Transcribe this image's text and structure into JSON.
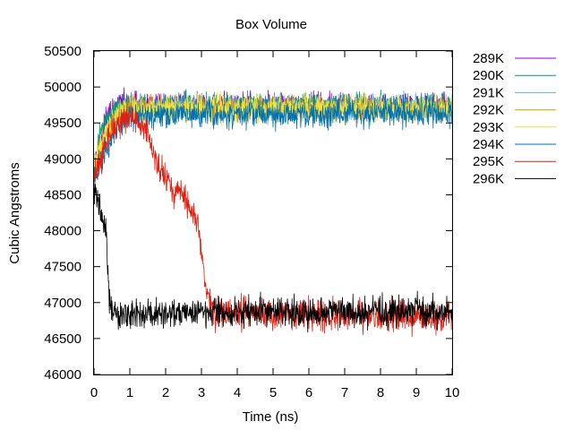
{
  "chart_data": {
    "type": "line",
    "title": "Box Volume",
    "xlabel": "Time (ns)",
    "ylabel": "Cubic Angstroms",
    "xlim": [
      0,
      10
    ],
    "ylim": [
      46000,
      50500
    ],
    "xticks": [
      "0",
      "1",
      "2",
      "3",
      "4",
      "5",
      "6",
      "7",
      "8",
      "9",
      "10"
    ],
    "yticks": [
      "46000",
      "46500",
      "47000",
      "47500",
      "48000",
      "48500",
      "49000",
      "49500",
      "50000",
      "50500"
    ],
    "grid": false,
    "legend_position": "right, outside plot",
    "series": [
      {
        "name": "289K",
        "color": "#9400d3",
        "noise": 160,
        "points": [
          [
            0,
            48900
          ],
          [
            0.2,
            49300
          ],
          [
            0.4,
            49600
          ],
          [
            0.7,
            49750
          ],
          [
            1.0,
            49750
          ],
          [
            10,
            49750
          ]
        ]
      },
      {
        "name": "290K",
        "color": "#009e73",
        "noise": 150,
        "points": [
          [
            0,
            49000
          ],
          [
            0.2,
            49400
          ],
          [
            0.5,
            49650
          ],
          [
            0.8,
            49750
          ],
          [
            10,
            49750
          ]
        ]
      },
      {
        "name": "291K",
        "color": "#56b4e9",
        "noise": 160,
        "points": [
          [
            0,
            48900
          ],
          [
            0.3,
            49300
          ],
          [
            0.7,
            49600
          ],
          [
            1.0,
            49700
          ],
          [
            10,
            49700
          ]
        ]
      },
      {
        "name": "292K",
        "color": "#e69f00",
        "noise": 160,
        "points": [
          [
            0,
            48800
          ],
          [
            0.3,
            49300
          ],
          [
            0.7,
            49650
          ],
          [
            1.0,
            49700
          ],
          [
            10,
            49700
          ]
        ]
      },
      {
        "name": "293K",
        "color": "#f0e442",
        "noise": 170,
        "points": [
          [
            0,
            48900
          ],
          [
            0.3,
            49300
          ],
          [
            0.7,
            49650
          ],
          [
            1.0,
            49700
          ],
          [
            10,
            49700
          ]
        ]
      },
      {
        "name": "294K",
        "color": "#0072b2",
        "noise": 170,
        "points": [
          [
            0,
            48700
          ],
          [
            0.3,
            49100
          ],
          [
            0.6,
            49400
          ],
          [
            1.0,
            49600
          ],
          [
            10,
            49650
          ]
        ]
      },
      {
        "name": "295K",
        "color": "#e51e10",
        "noise": 200,
        "points": [
          [
            0,
            48700
          ],
          [
            0.2,
            49000
          ],
          [
            0.5,
            49400
          ],
          [
            1.0,
            49600
          ],
          [
            1.5,
            49350
          ],
          [
            1.8,
            48900
          ],
          [
            2.2,
            48600
          ],
          [
            2.6,
            48400
          ],
          [
            2.9,
            48100
          ],
          [
            3.0,
            47700
          ],
          [
            3.15,
            47100
          ],
          [
            3.4,
            46850
          ],
          [
            10,
            46800
          ]
        ]
      },
      {
        "name": "296K",
        "color": "#000000",
        "noise": 190,
        "points": [
          [
            0,
            48600
          ],
          [
            0.1,
            48450
          ],
          [
            0.25,
            48100
          ],
          [
            0.35,
            47900
          ],
          [
            0.42,
            47000
          ],
          [
            0.5,
            46850
          ],
          [
            10,
            46880
          ]
        ]
      }
    ]
  }
}
